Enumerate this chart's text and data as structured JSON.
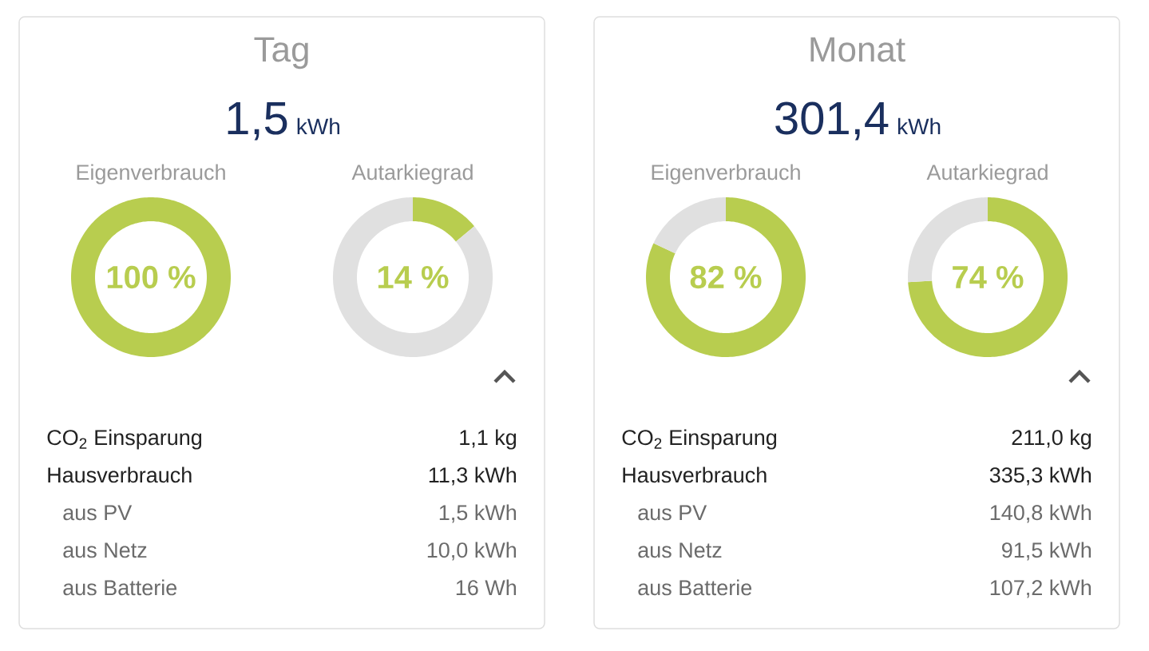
{
  "chart_data": [
    {
      "type": "other",
      "title": "Tag",
      "annotations": [
        "1,5",
        "kWh",
        "CO$_{2}$ Einsparung",
        "1,1 kg",
        "Hausverbrauch",
        "11,3 kWh",
        "aus PV",
        "1,5 kWh",
        "aus Netz",
        "10,0 kWh",
        "aus Batterie",
        "16 Wh"
      ]
    },
    {
      "type": "donut",
      "title": "Eigenverbrauch",
      "categories": [
        null
      ],
      "values": [
        100
      ],
      "colors": [
        "#b8cd4f"
      ],
      "annotations": [
        "100 %"
      ]
    },
    {
      "type": "donut",
      "title": "Autarkiegrad",
      "categories": [
        null,
        null
      ],
      "values": [
        14,
        86
      ],
      "colors": [
        "#b8cd4f",
        "#e0e0e0"
      ],
      "annotations": [
        "14 %"
      ]
    },
    {
      "type": "other",
      "title": "Monat",
      "annotations": [
        "301,4",
        "kWh",
        "CO$_{2}$ Einsparung",
        "211,0 kg",
        "Hausverbrauch",
        "335,3 kWh",
        "aus PV",
        "140,8 kWh",
        "aus Netz",
        "91,5 kWh",
        "aus Batterie",
        "107,2 kWh"
      ]
    },
    {
      "type": "donut",
      "title": "Eigenverbrauch",
      "categories": [
        null,
        null
      ],
      "values": [
        82,
        18
      ],
      "colors": [
        "#b8cd4f",
        "#e0e0e0"
      ],
      "annotations": [
        "82 %"
      ]
    },
    {
      "type": "donut",
      "title": "Autarkiegrad",
      "categories": [
        null,
        null
      ],
      "values": [
        74,
        26
      ],
      "colors": [
        "#b8cd4f",
        "#e0e0e0"
      ],
      "annotations": [
        "74 %"
      ]
    }
  ]
}
